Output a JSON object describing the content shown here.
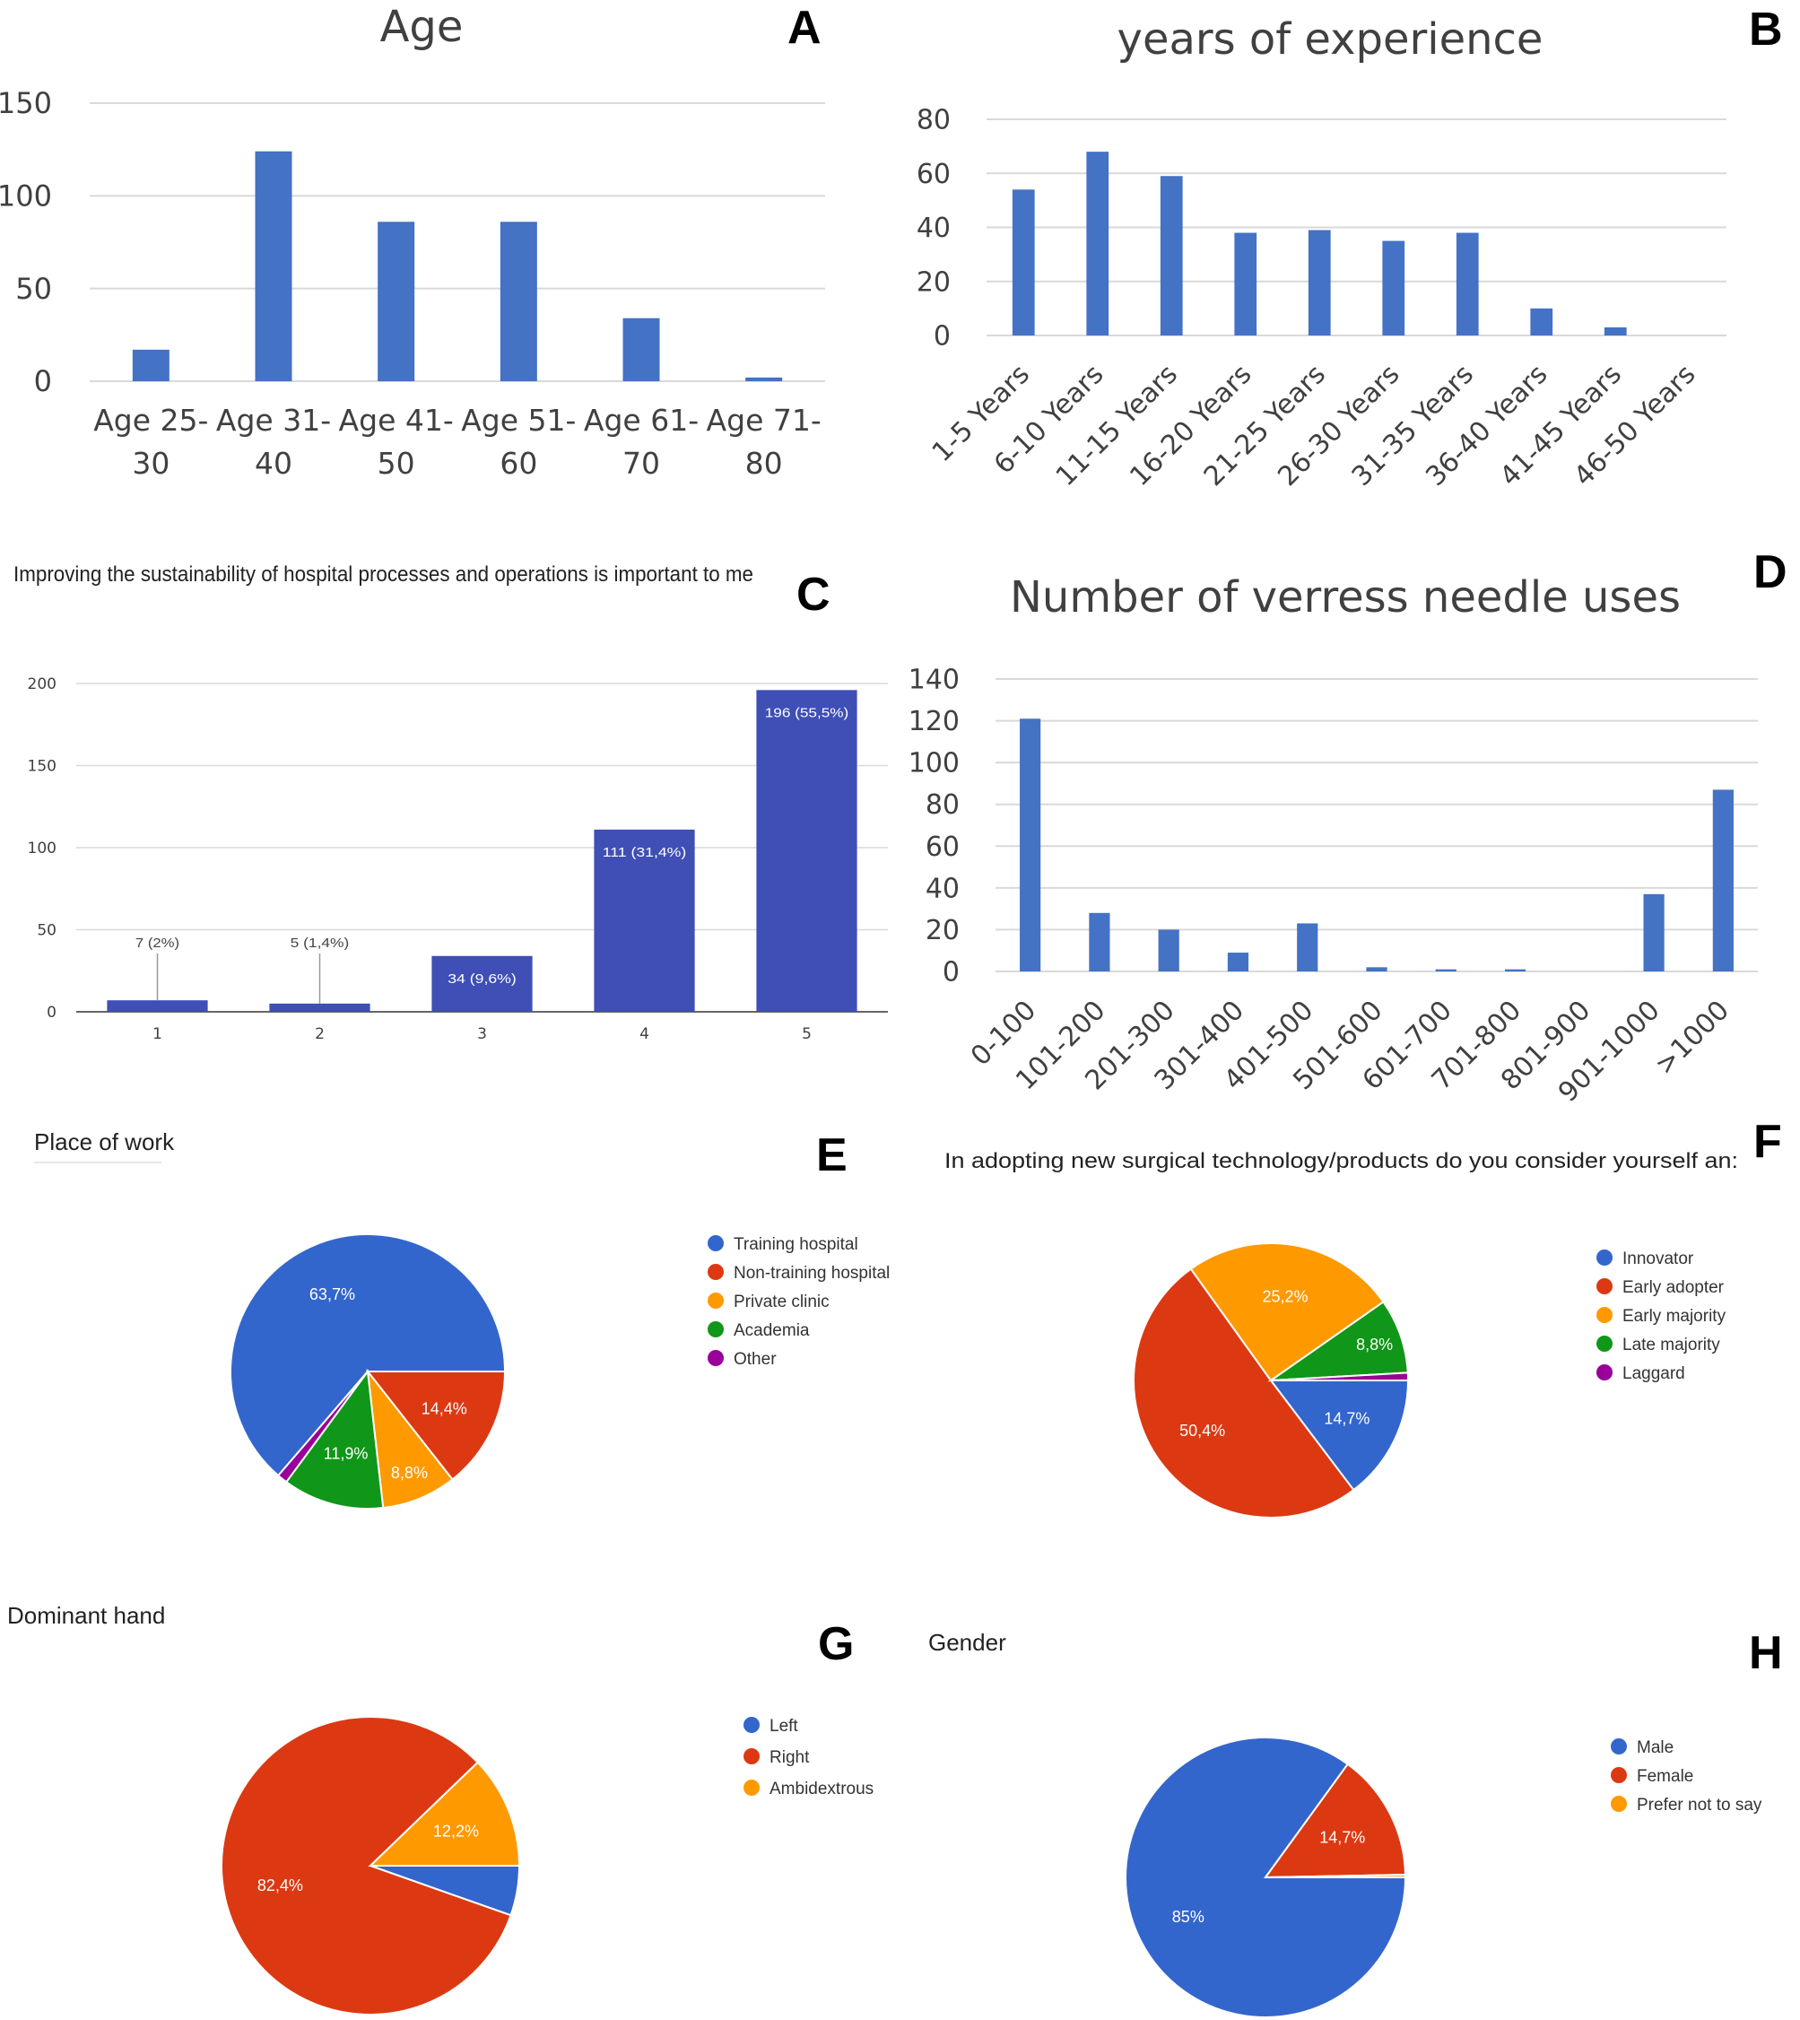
{
  "panels": {
    "A": "A",
    "B": "B",
    "C": "C",
    "D": "D",
    "E": "E",
    "F": "F",
    "G": "G",
    "H": "H"
  },
  "colors": {
    "bar_blue": "#4472C4",
    "bar_indigo": "#3F4FB5",
    "pie_blue": "#3366CC",
    "pie_red": "#DC3912",
    "pie_orange": "#FF9900",
    "pie_green": "#109618",
    "pie_purple": "#990099",
    "grid": "#D9D9D9"
  },
  "chart_data": [
    {
      "id": "A",
      "type": "bar",
      "title": "Age",
      "categories": [
        "Age 25-30",
        "Age 31-40",
        "Age 41-50",
        "Age 51-60",
        "Age 61-70",
        "Age 71-80"
      ],
      "category_lines": [
        [
          "Age 25-",
          "30"
        ],
        [
          "Age 31-",
          "40"
        ],
        [
          "Age 41-",
          "50"
        ],
        [
          "Age 51-",
          "60"
        ],
        [
          "Age 61-",
          "70"
        ],
        [
          "Age 71-",
          "80"
        ]
      ],
      "values": [
        17,
        124,
        86,
        86,
        34,
        2
      ],
      "ylim": [
        0,
        150
      ],
      "yticks": [
        0,
        50,
        100,
        150
      ],
      "grid": true
    },
    {
      "id": "B",
      "type": "bar",
      "title": "years of experience",
      "categories": [
        "1-5 Years",
        "6-10 Years",
        "11-15 Years",
        "16-20 Years",
        "21-25 Years",
        "26-30 Years",
        "31-35 Years",
        "36-40 Years",
        "41-45 Years",
        "46-50 Years"
      ],
      "values": [
        54,
        68,
        59,
        38,
        39,
        35,
        38,
        10,
        3,
        0
      ],
      "ylim": [
        0,
        80
      ],
      "yticks": [
        0,
        20,
        40,
        60,
        80
      ],
      "grid": true
    },
    {
      "id": "C",
      "type": "bar",
      "title": "Improving the sustainability of hospital processes and operations is important to me",
      "categories": [
        "1",
        "2",
        "3",
        "4",
        "5"
      ],
      "values": [
        7,
        5,
        34,
        111,
        196
      ],
      "data_labels": [
        "7 (2%)",
        "5 (1,4%)",
        "34 (9,6%)",
        "111 (31,4%)",
        "196 (55,5%)"
      ],
      "ylim": [
        0,
        200
      ],
      "yticks": [
        0,
        50,
        100,
        150,
        200
      ],
      "grid": true
    },
    {
      "id": "D",
      "type": "bar",
      "title": "Number of verress needle uses",
      "categories": [
        "0-100",
        "101-200",
        "201-300",
        "301-400",
        "401-500",
        "501-600",
        "601-700",
        "701-800",
        "801-900",
        "901-1000",
        ">1000"
      ],
      "values": [
        121,
        28,
        20,
        9,
        23,
        2,
        1,
        1,
        0,
        37,
        87
      ],
      "ylim": [
        0,
        140
      ],
      "yticks": [
        0,
        20,
        40,
        60,
        80,
        100,
        120,
        140
      ],
      "grid": true
    },
    {
      "id": "E",
      "type": "pie",
      "title": "Place of work",
      "labels": [
        "Training hospital",
        "Non-training hospital",
        "Private clinic",
        "Academia",
        "Other"
      ],
      "values": [
        63.7,
        14.4,
        8.8,
        11.9,
        1.2
      ],
      "slice_labels": [
        "63,7%",
        "14,4%",
        "8,8%",
        "11,9%",
        ""
      ],
      "color_keys": [
        "pie_blue",
        "pie_red",
        "pie_orange",
        "pie_green",
        "pie_purple"
      ]
    },
    {
      "id": "F",
      "type": "pie",
      "title": "In adopting new surgical technology/products do you consider yourself an:",
      "labels": [
        "Innovator",
        "Early adopter",
        "Early majority",
        "Late majority",
        "Laggard"
      ],
      "values": [
        14.7,
        50.4,
        25.2,
        8.8,
        0.9
      ],
      "slice_labels": [
        "14,7%",
        "50,4%",
        "25,2%",
        "8,8%",
        ""
      ],
      "color_keys": [
        "pie_blue",
        "pie_red",
        "pie_orange",
        "pie_green",
        "pie_purple"
      ]
    },
    {
      "id": "G",
      "type": "pie",
      "title": "Dominant hand",
      "labels": [
        "Left",
        "Right",
        "Ambidextrous"
      ],
      "values": [
        5.4,
        82.4,
        12.2
      ],
      "slice_labels": [
        "",
        "82,4%",
        "12,2%"
      ],
      "color_keys": [
        "pie_blue",
        "pie_red",
        "pie_orange"
      ]
    },
    {
      "id": "H",
      "type": "pie",
      "title": "Gender",
      "labels": [
        "Male",
        "Female",
        "Prefer not to say"
      ],
      "values": [
        85,
        14.7,
        0.3
      ],
      "slice_labels": [
        "85%",
        "14,7%",
        ""
      ],
      "color_keys": [
        "pie_blue",
        "pie_red",
        "pie_orange"
      ]
    }
  ]
}
